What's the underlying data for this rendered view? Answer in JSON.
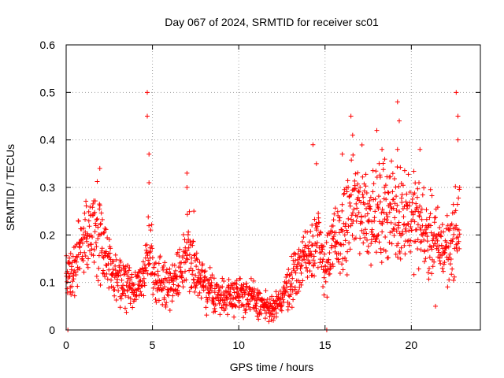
{
  "chart_data": {
    "type": "scatter",
    "title": "Day 067 of 2024, SRMTID for receiver sc01",
    "xlabel": "GPS time / hours",
    "ylabel": "SRMTID / TECUs",
    "xlim": [
      0,
      24
    ],
    "ylim": [
      0,
      0.6
    ],
    "xticks": [
      0,
      5,
      10,
      15,
      20
    ],
    "yticks": [
      0,
      0.1,
      0.2,
      0.3,
      0.4,
      0.5,
      0.6
    ],
    "xtick_labels": [
      "0",
      "5",
      "10",
      "15",
      "20"
    ],
    "ytick_labels": [
      "0",
      "0.1",
      "0.2",
      "0.3",
      "0.4",
      "0.5",
      "0.6"
    ],
    "grid": true,
    "marker": "+",
    "color": "#ff0000",
    "series": [
      {
        "name": "SRMTID",
        "trend": [
          [
            0,
            0.12
          ],
          [
            0.5,
            0.12
          ],
          [
            1,
            0.2
          ],
          [
            1.5,
            0.22
          ],
          [
            2,
            0.2
          ],
          [
            2.5,
            0.13
          ],
          [
            3,
            0.1
          ],
          [
            4,
            0.09
          ],
          [
            4.5,
            0.1
          ],
          [
            4.8,
            0.18
          ],
          [
            5.2,
            0.1
          ],
          [
            6,
            0.1
          ],
          [
            6.8,
            0.13
          ],
          [
            7,
            0.2
          ],
          [
            7.5,
            0.12
          ],
          [
            8,
            0.09
          ],
          [
            9,
            0.07
          ],
          [
            10,
            0.08
          ],
          [
            11,
            0.06
          ],
          [
            12,
            0.04
          ],
          [
            12.5,
            0.07
          ],
          [
            13,
            0.1
          ],
          [
            13.5,
            0.14
          ],
          [
            14,
            0.16
          ],
          [
            14.5,
            0.2
          ],
          [
            15,
            0.13
          ],
          [
            15.5,
            0.18
          ],
          [
            16,
            0.2
          ],
          [
            16.5,
            0.24
          ],
          [
            17,
            0.27
          ],
          [
            17.5,
            0.25
          ],
          [
            18,
            0.23
          ],
          [
            18.5,
            0.27
          ],
          [
            19,
            0.24
          ],
          [
            19.5,
            0.25
          ],
          [
            20,
            0.24
          ],
          [
            20.5,
            0.22
          ],
          [
            21,
            0.2
          ],
          [
            21.5,
            0.18
          ],
          [
            22,
            0.17
          ],
          [
            22.5,
            0.2
          ],
          [
            22.8,
            0.22
          ]
        ],
        "spikes": [
          [
            0.1,
            0.0
          ],
          [
            1.95,
            0.34
          ],
          [
            4.7,
            0.5
          ],
          [
            4.7,
            0.45
          ],
          [
            4.8,
            0.37
          ],
          [
            4.8,
            0.31
          ],
          [
            7,
            0.33
          ],
          [
            7,
            0.3
          ],
          [
            7.4,
            0.25
          ],
          [
            14.3,
            0.39
          ],
          [
            14.5,
            0.35
          ],
          [
            15.1,
            0.0
          ],
          [
            16,
            0.37
          ],
          [
            16.5,
            0.45
          ],
          [
            16.6,
            0.41
          ],
          [
            18,
            0.42
          ],
          [
            18.3,
            0.38
          ],
          [
            19.2,
            0.48
          ],
          [
            19.3,
            0.44
          ],
          [
            19.2,
            0.38
          ],
          [
            20.5,
            0.38
          ],
          [
            22.6,
            0.5
          ],
          [
            22.7,
            0.45
          ],
          [
            22.7,
            0.4
          ],
          [
            22.8,
            0.3
          ],
          [
            21.4,
            0.05
          ],
          [
            12,
            0.02
          ]
        ]
      }
    ]
  }
}
